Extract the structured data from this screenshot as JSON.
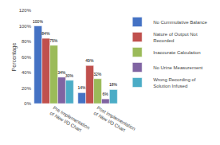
{
  "chart_data": {
    "type": "bar",
    "categories": [
      "Pre Implementation\nof New I/O Chart",
      "Post Implementation\nof New I/O Chart"
    ],
    "series": [
      {
        "name": "No Cummulative Balance",
        "color": "#4472C4",
        "values": [
          100,
          14
        ],
        "value_labels": [
          "100%",
          "14%"
        ]
      },
      {
        "name": "Nature of Output Not\nRecorded",
        "color": "#C0504D",
        "values": [
          84,
          49
        ],
        "value_labels": [
          "84%",
          "49%"
        ]
      },
      {
        "name": "Inaccurate Calculation",
        "color": "#9BBB59",
        "values": [
          75,
          32
        ],
        "value_labels": [
          "75%",
          "32%"
        ]
      },
      {
        "name": "No Urine Measurement",
        "color": "#8064A2",
        "values": [
          34,
          6
        ],
        "value_labels": [
          "34%",
          "6%"
        ]
      },
      {
        "name": "Wrong Recording of\nSolution Infused",
        "color": "#4BACC6",
        "values": [
          30,
          18
        ],
        "value_labels": [
          "30%",
          "18%"
        ]
      }
    ],
    "ylabel": "Percentage",
    "ylim": [
      0,
      120
    ],
    "yticks": [
      {
        "value": 0,
        "label": "0%"
      },
      {
        "value": 20,
        "label": "20%"
      },
      {
        "value": 40,
        "label": "40%"
      },
      {
        "value": 60,
        "label": "60%"
      },
      {
        "value": 80,
        "label": "80%"
      },
      {
        "value": 100,
        "label": "100%"
      },
      {
        "value": 120,
        "label": "120%"
      }
    ],
    "grid": false,
    "legend": "right",
    "data_labels": true
  }
}
